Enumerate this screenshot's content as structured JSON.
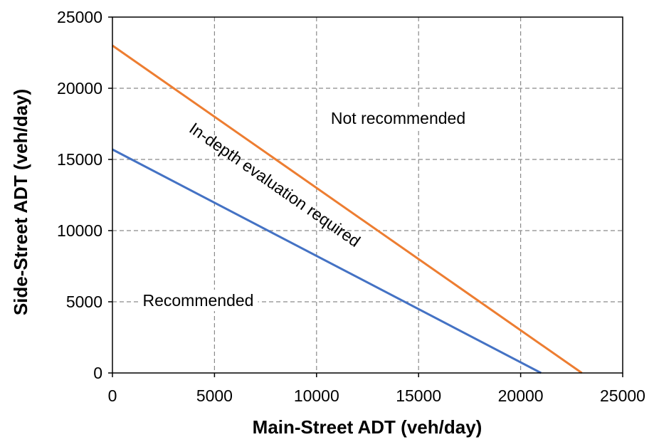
{
  "chart_data": {
    "type": "line",
    "title": "",
    "xlabel": "Main-Street ADT (veh/day)",
    "ylabel": "Side-Street ADT (veh/day)",
    "xlim": [
      0,
      25000
    ],
    "ylim": [
      0,
      25000
    ],
    "x_ticks": [
      0,
      5000,
      10000,
      15000,
      20000,
      25000
    ],
    "y_ticks": [
      0,
      5000,
      10000,
      15000,
      20000,
      25000
    ],
    "grid": true,
    "legend": "none",
    "series": [
      {
        "color": "#4472c4",
        "points": [
          [
            0,
            15700
          ],
          [
            21000,
            0
          ]
        ]
      },
      {
        "color": "#ed7d31",
        "points": [
          [
            0,
            23000
          ],
          [
            23000,
            0
          ]
        ]
      }
    ],
    "annotations": [
      {
        "id": "recommended",
        "text": "Recommended",
        "x": 4200,
        "y": 5000
      },
      {
        "id": "not-recommended",
        "text": "Not recommended",
        "x": 14000,
        "y": 17800
      },
      {
        "id": "in-depth",
        "text": "In-depth evaluation required",
        "x": 7800,
        "y": 12900
      }
    ]
  }
}
